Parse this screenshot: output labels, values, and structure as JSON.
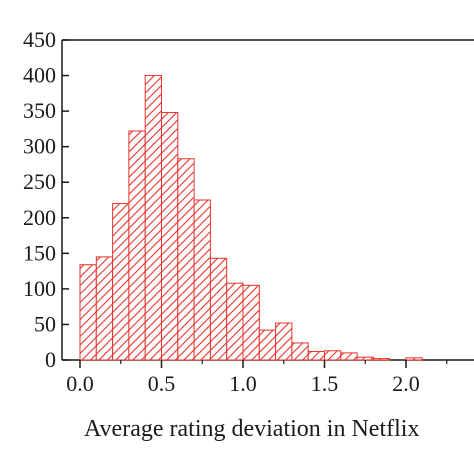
{
  "chart_data": {
    "type": "bar",
    "subtype": "histogram",
    "xlabel": "Average rating deviation in Netflix",
    "ylabel": "",
    "ylim": [
      0,
      450
    ],
    "yticks": [
      0,
      50,
      100,
      150,
      200,
      250,
      300,
      350,
      400,
      450
    ],
    "xticks": [
      0.0,
      0.5,
      1.0,
      1.5,
      2.0
    ],
    "xtick_labels": [
      "0.0",
      "0.5",
      "1.0",
      "1.5",
      "2.0"
    ],
    "bin_width": 0.1,
    "bins": [
      {
        "x_start": 0.0,
        "x_end": 0.1,
        "value": 134
      },
      {
        "x_start": 0.1,
        "x_end": 0.2,
        "value": 145
      },
      {
        "x_start": 0.2,
        "x_end": 0.3,
        "value": 220
      },
      {
        "x_start": 0.3,
        "x_end": 0.4,
        "value": 322
      },
      {
        "x_start": 0.4,
        "x_end": 0.5,
        "value": 400
      },
      {
        "x_start": 0.5,
        "x_end": 0.6,
        "value": 348
      },
      {
        "x_start": 0.6,
        "x_end": 0.7,
        "value": 283
      },
      {
        "x_start": 0.7,
        "x_end": 0.8,
        "value": 225
      },
      {
        "x_start": 0.8,
        "x_end": 0.9,
        "value": 143
      },
      {
        "x_start": 0.9,
        "x_end": 1.0,
        "value": 108
      },
      {
        "x_start": 1.0,
        "x_end": 1.1,
        "value": 105
      },
      {
        "x_start": 1.1,
        "x_end": 1.2,
        "value": 42
      },
      {
        "x_start": 1.2,
        "x_end": 1.3,
        "value": 52
      },
      {
        "x_start": 1.3,
        "x_end": 1.4,
        "value": 24
      },
      {
        "x_start": 1.4,
        "x_end": 1.5,
        "value": 12
      },
      {
        "x_start": 1.5,
        "x_end": 1.6,
        "value": 13
      },
      {
        "x_start": 1.6,
        "x_end": 1.7,
        "value": 10
      },
      {
        "x_start": 1.7,
        "x_end": 1.8,
        "value": 4
      },
      {
        "x_start": 1.8,
        "x_end": 1.9,
        "value": 2
      },
      {
        "x_start": 1.9,
        "x_end": 2.0,
        "value": 0
      },
      {
        "x_start": 2.0,
        "x_end": 2.1,
        "value": 3
      }
    ],
    "grid": false,
    "bar_color": "#e8342b",
    "bar_fill": "hatched"
  }
}
